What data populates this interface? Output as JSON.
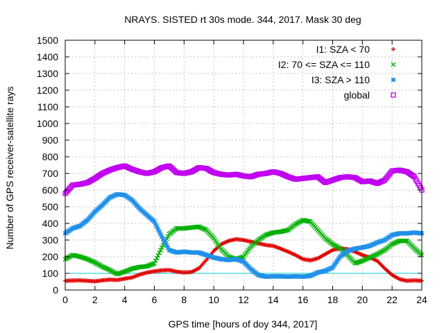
{
  "chart_data": {
    "type": "scatter",
    "title": "NRAYS. SISTED rt 30s mode. 344, 2017. Mask 30 deg",
    "xlabel": "GPS time [hours of doy 344, 2017]",
    "ylabel": "Number of GPS receiver-satellite rays",
    "xlim": [
      0,
      24
    ],
    "ylim": [
      0,
      1500
    ],
    "xticks": [
      0,
      2,
      4,
      6,
      8,
      10,
      12,
      14,
      16,
      18,
      20,
      22,
      24
    ],
    "yticks": [
      0,
      100,
      200,
      300,
      400,
      500,
      600,
      700,
      800,
      900,
      1000,
      1100,
      1200,
      1300,
      1400,
      1500
    ],
    "grid": true,
    "legend_position": "top-right",
    "reference_line": {
      "y": 100,
      "color": "#00c8c8"
    },
    "series": [
      {
        "name": "I1: SZA < 70",
        "marker": "+",
        "color": "#e00000",
        "x": [
          0,
          0.5,
          1,
          1.5,
          2,
          2.5,
          3,
          3.5,
          4,
          4.5,
          5,
          5.5,
          6,
          6.5,
          7,
          7.5,
          8,
          8.5,
          9,
          9.5,
          10,
          10.5,
          11,
          11.5,
          12,
          12.5,
          13,
          13.5,
          14,
          14.5,
          15,
          15.5,
          16,
          16.5,
          17,
          17.5,
          18,
          18.5,
          19,
          19.5,
          20,
          20.5,
          21,
          21.5,
          22,
          22.5,
          23,
          23.5,
          24
        ],
        "y": [
          55,
          57,
          58,
          55,
          52,
          58,
          62,
          60,
          68,
          75,
          92,
          105,
          112,
          118,
          120,
          110,
          105,
          108,
          130,
          180,
          235,
          275,
          295,
          305,
          300,
          290,
          280,
          270,
          265,
          248,
          230,
          210,
          185,
          178,
          190,
          215,
          240,
          250,
          245,
          230,
          210,
          195,
          175,
          130,
          90,
          65,
          55,
          58,
          55
        ]
      },
      {
        "name": "I2: 70 <= SZA <= 110",
        "marker": "x",
        "color": "#00b000",
        "x": [
          0,
          0.5,
          1,
          1.5,
          2,
          2.5,
          3,
          3.5,
          4,
          4.5,
          5,
          5.5,
          6,
          6.5,
          7,
          7.5,
          8,
          8.5,
          9,
          9.5,
          10,
          10.5,
          11,
          11.5,
          12,
          12.5,
          13,
          13.5,
          14,
          14.5,
          15,
          15.5,
          16,
          16.5,
          17,
          17.5,
          18,
          18.5,
          19,
          19.5,
          20,
          20.5,
          21,
          21.5,
          22,
          22.5,
          23,
          23.5,
          24
        ],
        "y": [
          185,
          210,
          200,
          185,
          165,
          140,
          120,
          95,
          110,
          128,
          138,
          142,
          160,
          255,
          335,
          370,
          370,
          375,
          380,
          360,
          310,
          245,
          200,
          185,
          200,
          260,
          300,
          330,
          345,
          350,
          360,
          395,
          420,
          410,
          360,
          310,
          275,
          250,
          210,
          160,
          175,
          195,
          215,
          240,
          275,
          295,
          295,
          250,
          210
        ]
      },
      {
        "name": "I3: SZA > 110",
        "marker": "*",
        "color": "#2090e8",
        "x": [
          0,
          0.5,
          1,
          1.5,
          2,
          2.5,
          3,
          3.5,
          4,
          4.5,
          5,
          5.5,
          6,
          6.5,
          7,
          7.5,
          8,
          8.5,
          9,
          9.5,
          10,
          10.5,
          11,
          11.5,
          12,
          12.5,
          13,
          13.5,
          14,
          14.5,
          15,
          15.5,
          16,
          16.5,
          17,
          17.5,
          18,
          18.5,
          19,
          19.5,
          20,
          20.5,
          21,
          21.5,
          22,
          22.5,
          23,
          23.5,
          24
        ],
        "y": [
          340,
          370,
          385,
          420,
          470,
          510,
          555,
          575,
          570,
          540,
          490,
          450,
          410,
          320,
          240,
          225,
          230,
          225,
          225,
          210,
          195,
          185,
          180,
          185,
          170,
          125,
          90,
          80,
          82,
          82,
          80,
          82,
          80,
          85,
          105,
          115,
          135,
          200,
          235,
          248,
          255,
          265,
          285,
          300,
          330,
          340,
          340,
          345,
          340
        ]
      },
      {
        "name": "global",
        "marker": "square",
        "color": "#c000f0",
        "x": [
          0,
          0.5,
          1,
          1.5,
          2,
          2.5,
          3,
          3.5,
          4,
          4.5,
          5,
          5.5,
          6,
          6.5,
          7,
          7.5,
          8,
          8.5,
          9,
          9.5,
          10,
          10.5,
          11,
          11.5,
          12,
          12.5,
          13,
          13.5,
          14,
          14.5,
          15,
          15.5,
          16,
          16.5,
          17,
          17.5,
          18,
          18.5,
          19,
          19.5,
          20,
          20.5,
          21,
          21.5,
          22,
          22.5,
          23,
          23.5,
          24
        ],
        "y": [
          580,
          630,
          635,
          645,
          670,
          700,
          720,
          735,
          745,
          725,
          710,
          700,
          710,
          735,
          745,
          705,
          700,
          710,
          735,
          730,
          705,
          695,
          690,
          695,
          685,
          680,
          695,
          700,
          710,
          700,
          680,
          665,
          670,
          675,
          680,
          645,
          660,
          675,
          680,
          675,
          650,
          655,
          640,
          660,
          715,
          720,
          710,
          680,
          600
        ]
      }
    ]
  }
}
